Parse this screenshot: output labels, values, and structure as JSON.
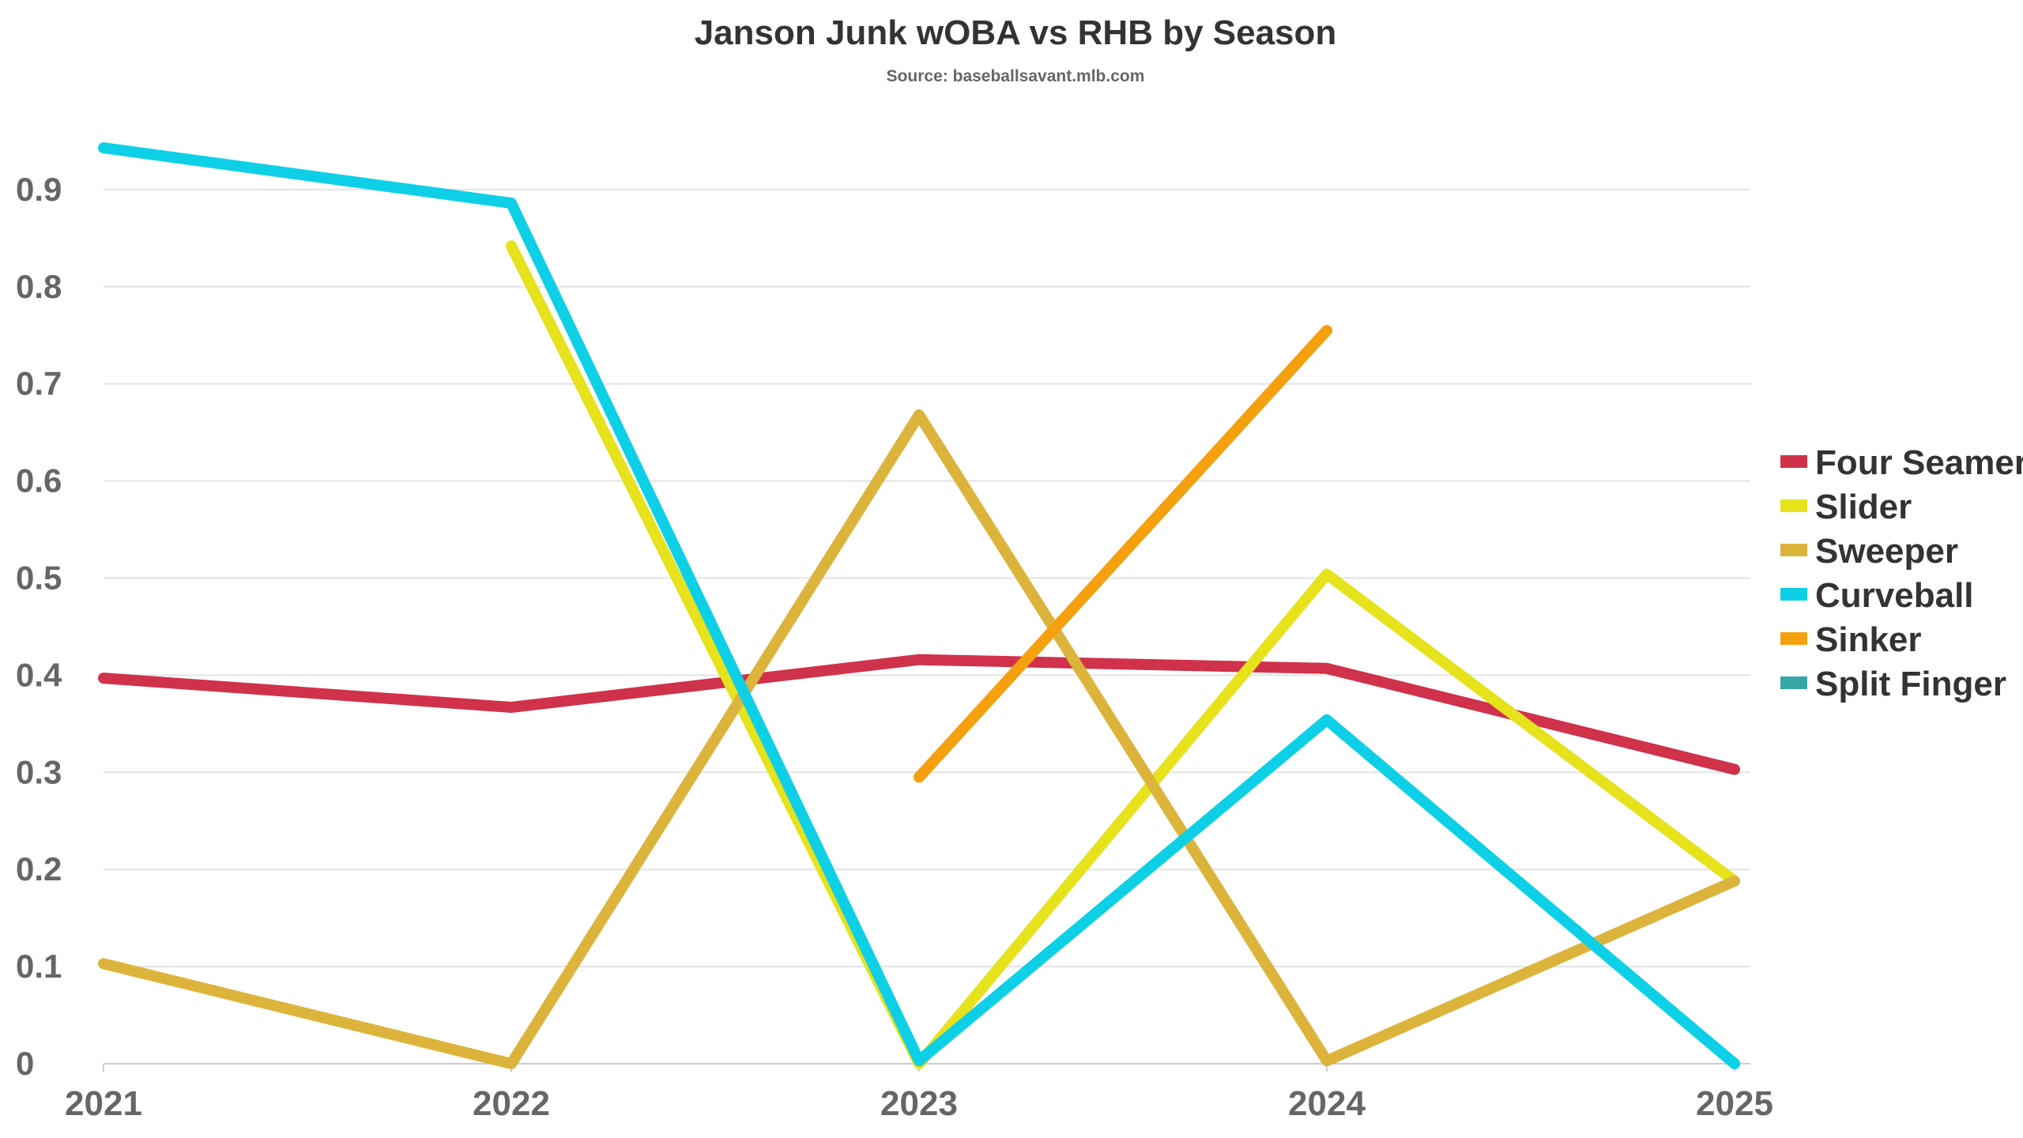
{
  "chart_data": {
    "type": "line",
    "title": "Janson Junk wOBA vs RHB by Season",
    "subtitle": "Source: baseballsavant.mlb.com",
    "xlabel": "",
    "ylabel": "",
    "x": [
      "2021",
      "2022",
      "2023",
      "2024",
      "2025"
    ],
    "ylim": [
      0,
      0.95
    ],
    "y_ticks": [
      "0",
      "0.1",
      "0.2",
      "0.3",
      "0.4",
      "0.5",
      "0.6",
      "0.7",
      "0.8",
      "0.9"
    ],
    "grid": true,
    "legend_position": "right",
    "series": [
      {
        "name": "Four Seamer",
        "color": "#d0314b",
        "values": [
          0.397,
          0.367,
          0.416,
          0.407,
          0.303
        ]
      },
      {
        "name": "Slider",
        "color": "#e6e21c",
        "values": [
          null,
          0.842,
          0.0,
          0.504,
          0.188
        ]
      },
      {
        "name": "Sweeper",
        "color": "#dcb43c",
        "values": [
          0.103,
          0.0,
          0.668,
          0.003,
          0.188
        ]
      },
      {
        "name": "Curveball",
        "color": "#0dd0e6",
        "values": [
          0.943,
          0.886,
          0.003,
          0.354,
          0.0
        ]
      },
      {
        "name": "Sinker",
        "color": "#f5a00f",
        "values": [
          null,
          null,
          0.295,
          0.755,
          null
        ]
      },
      {
        "name": "Split Finger",
        "color": "#38a6a6",
        "values": [
          null,
          null,
          null,
          null,
          null
        ]
      }
    ]
  }
}
